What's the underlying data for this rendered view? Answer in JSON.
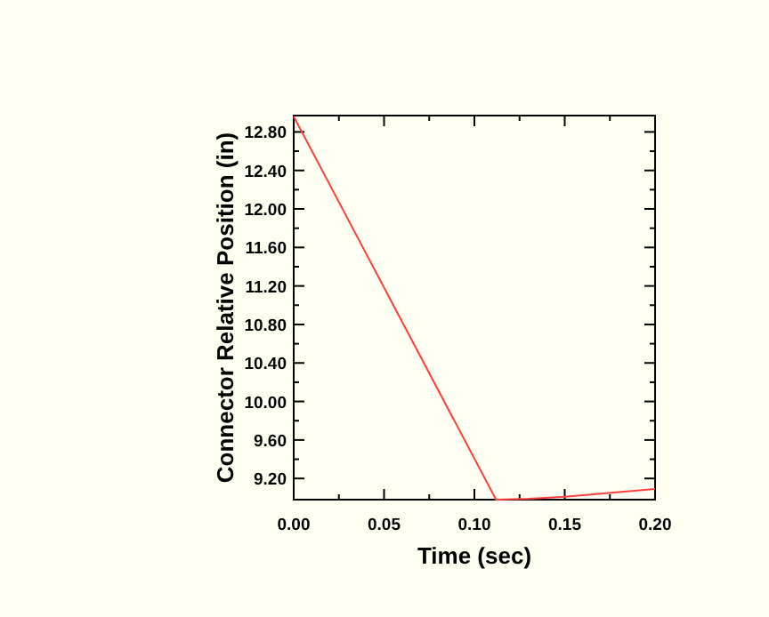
{
  "chart_data": {
    "type": "line",
    "xlabel": "Time (sec)",
    "ylabel": "Connector Relative Position (in)",
    "x": [
      0,
      0.112,
      0.13,
      0.15,
      0.2
    ],
    "series": [
      {
        "color": "#ff4040",
        "values": [
          12.96,
          8.98,
          8.99,
          9.01,
          9.09
        ]
      }
    ],
    "xlim": [
      0,
      0.2
    ],
    "ylim": [
      8.98,
      12.97
    ],
    "xticks": [
      {
        "value": 0,
        "label": "0.00"
      },
      {
        "value": 0.025,
        "label": null
      },
      {
        "value": 0.05,
        "label": "0.05"
      },
      {
        "value": 0.075,
        "label": null
      },
      {
        "value": 0.1,
        "label": "0.10"
      },
      {
        "value": 0.125,
        "label": null
      },
      {
        "value": 0.15,
        "label": "0.15"
      },
      {
        "value": 0.175,
        "label": null
      },
      {
        "value": 0.2,
        "label": "0.20"
      }
    ],
    "yticks": [
      {
        "value": 9.2,
        "label": "9.20"
      },
      {
        "value": 9.4,
        "label": null
      },
      {
        "value": 9.6,
        "label": "9.60"
      },
      {
        "value": 9.8,
        "label": null
      },
      {
        "value": 10,
        "label": "10.00"
      },
      {
        "value": 10.2,
        "label": null
      },
      {
        "value": 10.4,
        "label": "10.40"
      },
      {
        "value": 10.6,
        "label": null
      },
      {
        "value": 10.8,
        "label": "10.80"
      },
      {
        "value": 11,
        "label": null
      },
      {
        "value": 11.2,
        "label": "11.20"
      },
      {
        "value": 11.4,
        "label": null
      },
      {
        "value": 11.6,
        "label": "11.60"
      },
      {
        "value": 11.8,
        "label": null
      },
      {
        "value": 12,
        "label": "12.00"
      },
      {
        "value": 12.2,
        "label": null
      },
      {
        "value": 12.4,
        "label": "12.40"
      },
      {
        "value": 12.6,
        "label": null
      },
      {
        "value": 12.8,
        "label": "12.80"
      }
    ],
    "grid": false,
    "marker": "none",
    "line_style": "solid"
  }
}
